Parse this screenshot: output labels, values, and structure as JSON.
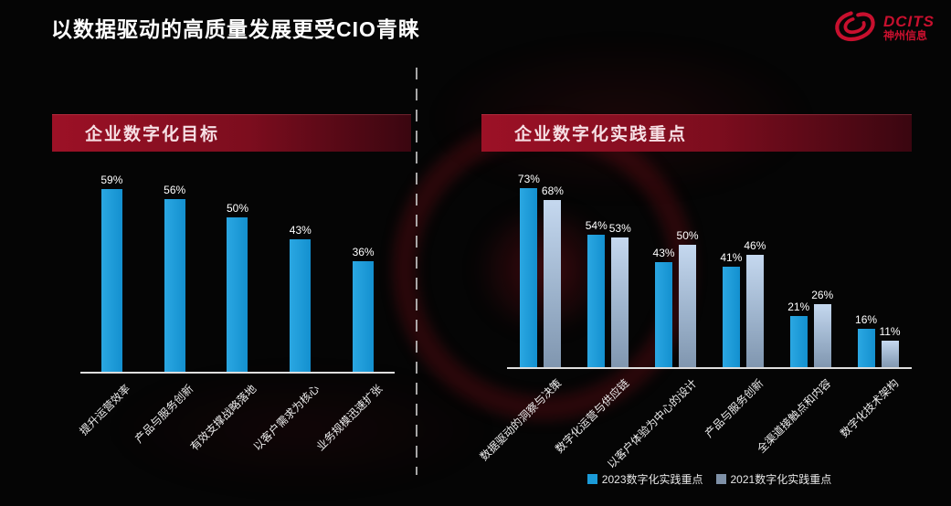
{
  "page": {
    "title": "以数据驱动的高质量发展更受CIO青睐"
  },
  "logo": {
    "brand": "DCITS",
    "company": "神州信息"
  },
  "left_panel": {
    "header": "企业数字化目标"
  },
  "right_panel": {
    "header": "企业数字化实践重点"
  },
  "colors": {
    "accent_red": "#c8102e",
    "banner_red": "#8b0f22",
    "bar_blue": "#1b9bd8",
    "bar_gray": "#9db3cc",
    "legend_blue": "#1b9bd8",
    "legend_gray": "#7e90a6"
  },
  "chart_data": [
    {
      "type": "bar",
      "title": "企业数字化目标",
      "categories": [
        "提升运营效率",
        "产品与服务创新",
        "有效支撑战略落地",
        "以客户需求为核心",
        "业务规模迅速扩张"
      ],
      "values": [
        59,
        56,
        50,
        43,
        36
      ],
      "data_labels": [
        "59%",
        "56%",
        "50%",
        "43%",
        "36%"
      ],
      "unit": "%",
      "xlabel": "",
      "ylabel": "",
      "ylim": [
        0,
        80
      ],
      "grid": false,
      "legend_position": "none"
    },
    {
      "type": "bar",
      "title": "企业数字化实践重点",
      "categories": [
        "数据驱动的洞察与决策",
        "数字化运营与供应链",
        "以客户体验为中心的设计",
        "产品与服务创新",
        "全渠道接触点和内容",
        "数字化技术架构"
      ],
      "series": [
        {
          "name": "2023数字化实践重点",
          "values": [
            73,
            54,
            43,
            41,
            21,
            16
          ]
        },
        {
          "name": "2021数字化实践重点",
          "values": [
            68,
            53,
            50,
            46,
            26,
            11
          ]
        }
      ],
      "unit": "%",
      "xlabel": "",
      "ylabel": "",
      "ylim": [
        0,
        80
      ],
      "grid": false,
      "legend_position": "bottom"
    }
  ]
}
